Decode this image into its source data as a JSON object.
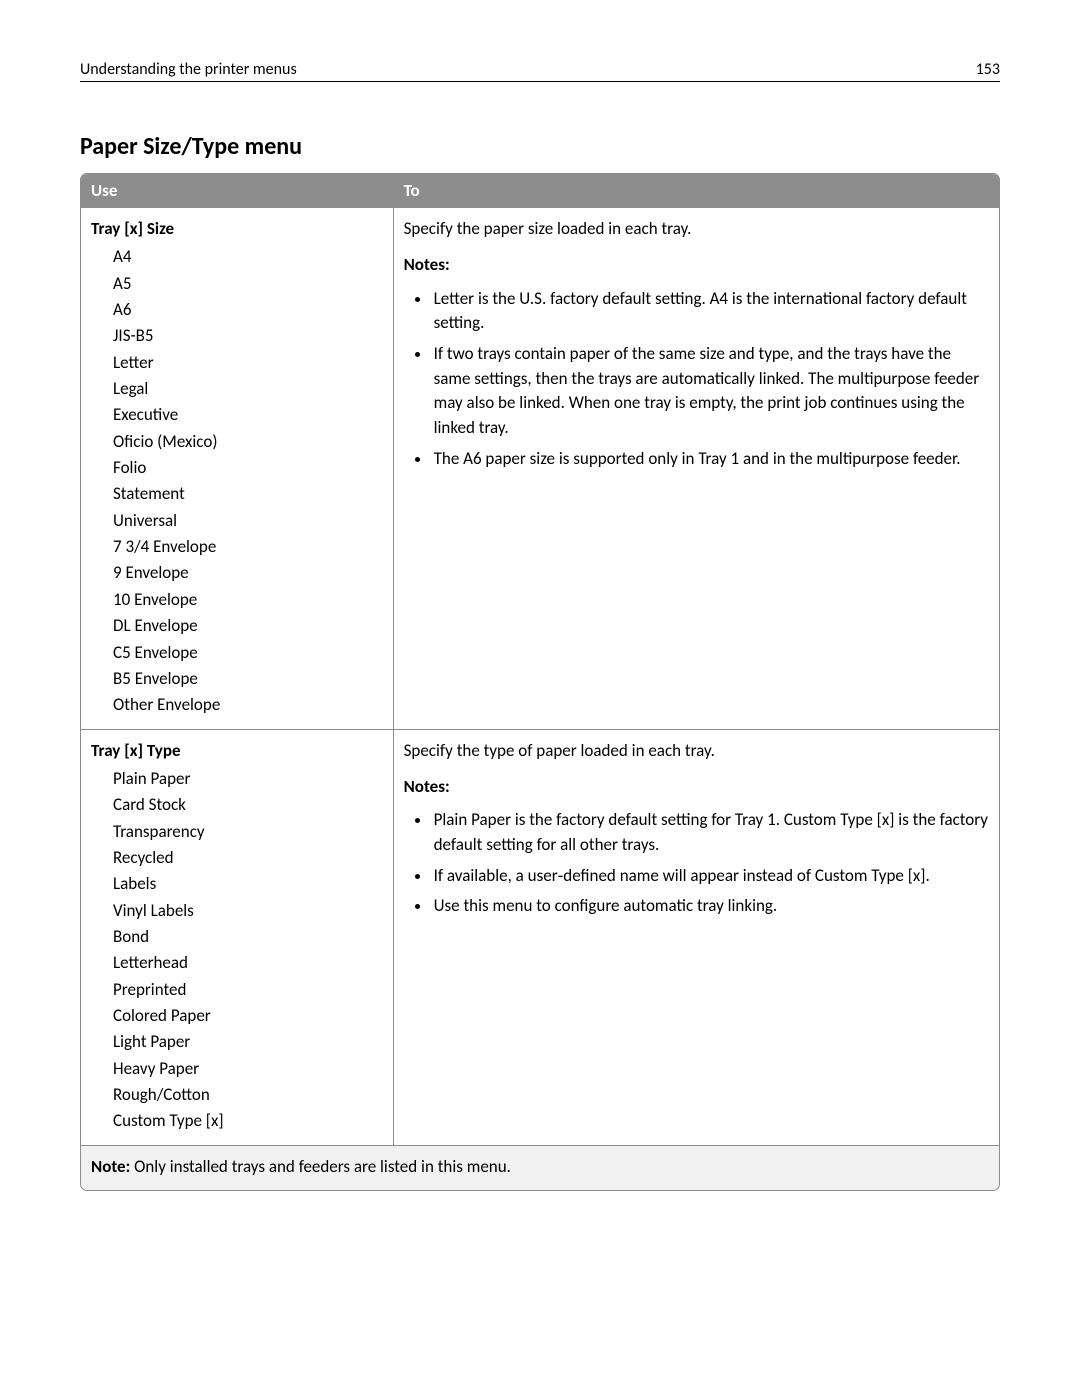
{
  "header": {
    "title": "Understanding the printer menus",
    "page_number": "153"
  },
  "section_heading": "Paper Size/Type menu",
  "table": {
    "columns": [
      "Use",
      "To"
    ],
    "rows": [
      {
        "use_heading": "Tray [x] Size",
        "use_items": [
          "A4",
          "A5",
          "A6",
          "JIS-B5",
          "Letter",
          "Legal",
          "Executive",
          "Oficio (Mexico)",
          "Folio",
          "Statement",
          "Universal",
          "7 3/4 Envelope",
          "9 Envelope",
          "10 Envelope",
          "DL Envelope",
          "C5 Envelope",
          "B5 Envelope",
          "Other Envelope"
        ],
        "to_desc": "Specify the paper size loaded in each tray.",
        "notes_label": "Notes:",
        "notes": [
          "Letter is the U.S. factory default setting. A4 is the international factory default setting.",
          "If two trays contain paper of the same size and type, and the trays have the same settings, then the trays are automatically linked. The multipurpose feeder may also be linked. When one tray is empty, the print job continues using the linked tray.",
          "The A6 paper size is supported only in Tray 1 and in the multipurpose feeder."
        ]
      },
      {
        "use_heading": "Tray [x] Type",
        "use_items": [
          "Plain Paper",
          "Card Stock",
          "Transparency",
          "Recycled",
          "Labels",
          "Vinyl Labels",
          "Bond",
          "Letterhead",
          "Preprinted",
          "Colored Paper",
          "Light Paper",
          "Heavy Paper",
          "Rough/Cotton",
          "Custom Type [x]"
        ],
        "to_desc": "Specify the type of paper loaded in each tray.",
        "notes_label": "Notes:",
        "notes": [
          "Plain Paper is the factory default setting for Tray 1. Custom Type [x] is the factory default setting for all other trays.",
          "If available, a user‑defined name will appear instead of Custom Type [x].",
          "Use this menu to configure automatic tray linking."
        ]
      }
    ],
    "footnote_label": "Note:",
    "footnote_text": " Only installed trays and feeders are listed in this menu."
  },
  "style": {
    "header_bg": "#8d8d8d",
    "header_text_color": "#ffffff",
    "border_color": "#8d8d8d",
    "footnote_bg": "#f2f2f2",
    "body_font_size": 17,
    "heading_font_size": 24
  }
}
